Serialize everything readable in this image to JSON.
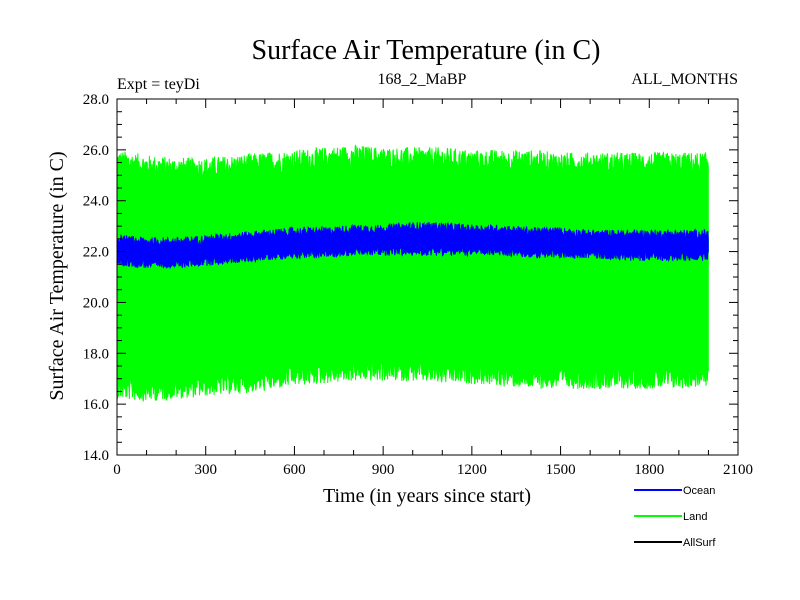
{
  "chart_data": {
    "type": "line",
    "title": "Surface Air Temperature (in C)",
    "subtitle_left": "Expt = teyDi",
    "subtitle_center": "168_2_MaBP",
    "subtitle_right": "ALL_MONTHS",
    "xlabel": "Time (in years since start)",
    "ylabel": "Surface Air Temperature (in C)",
    "xlim": [
      0,
      2100
    ],
    "ylim": [
      14.0,
      28.0
    ],
    "x_ticks": [
      0,
      300,
      600,
      900,
      1200,
      1500,
      1800,
      2100
    ],
    "x_tick_labels": [
      "0",
      "300",
      "600",
      "900",
      "1200",
      "1500",
      "1800",
      "2100"
    ],
    "y_ticks": [
      14,
      16,
      18,
      20,
      22,
      24,
      26,
      28
    ],
    "y_tick_labels": [
      "14.0",
      "16.0",
      "18.0",
      "20.0",
      "22.0",
      "24.0",
      "26.0",
      "28.0"
    ],
    "x_minor_step": 100,
    "y_minor_step": 0.5,
    "data_x_end": 2000,
    "series": [
      {
        "name": "Land",
        "color": "#00ff00",
        "x": [
          0,
          100,
          200,
          300,
          400,
          500,
          600,
          700,
          800,
          900,
          1000,
          1100,
          1200,
          1300,
          1400,
          1500,
          1600,
          1700,
          1800,
          1900,
          2000
        ],
        "upper": [
          25.6,
          25.4,
          25.3,
          25.3,
          25.4,
          25.5,
          25.6,
          25.7,
          25.8,
          25.7,
          25.7,
          25.7,
          25.6,
          25.6,
          25.6,
          25.5,
          25.5,
          25.5,
          25.5,
          25.5,
          25.5
        ],
        "lower": [
          16.6,
          16.5,
          16.6,
          16.7,
          16.8,
          16.9,
          17.1,
          17.2,
          17.3,
          17.3,
          17.3,
          17.2,
          17.2,
          17.1,
          17.0,
          17.0,
          17.0,
          17.0,
          17.0,
          17.0,
          17.1
        ]
      },
      {
        "name": "Ocean",
        "color": "#0000ff",
        "x": [
          0,
          100,
          200,
          300,
          400,
          500,
          600,
          700,
          800,
          900,
          1000,
          1100,
          1200,
          1300,
          1400,
          1500,
          1600,
          1700,
          1800,
          1900,
          2000
        ],
        "upper": [
          22.5,
          22.4,
          22.4,
          22.5,
          22.6,
          22.7,
          22.8,
          22.8,
          22.9,
          22.9,
          23.0,
          23.0,
          22.9,
          22.9,
          22.8,
          22.8,
          22.7,
          22.7,
          22.7,
          22.7,
          22.7
        ],
        "lower": [
          21.6,
          21.5,
          21.5,
          21.6,
          21.7,
          21.8,
          21.9,
          21.9,
          22.0,
          22.0,
          22.0,
          22.0,
          22.0,
          22.0,
          21.9,
          21.9,
          21.9,
          21.8,
          21.8,
          21.8,
          21.8
        ]
      },
      {
        "name": "AllSurf",
        "color": "#000000",
        "x": [],
        "upper": [],
        "lower": []
      }
    ],
    "legend": {
      "placement": "bottom-right",
      "entries": [
        "Ocean",
        "Land",
        "AllSurf"
      ]
    }
  }
}
